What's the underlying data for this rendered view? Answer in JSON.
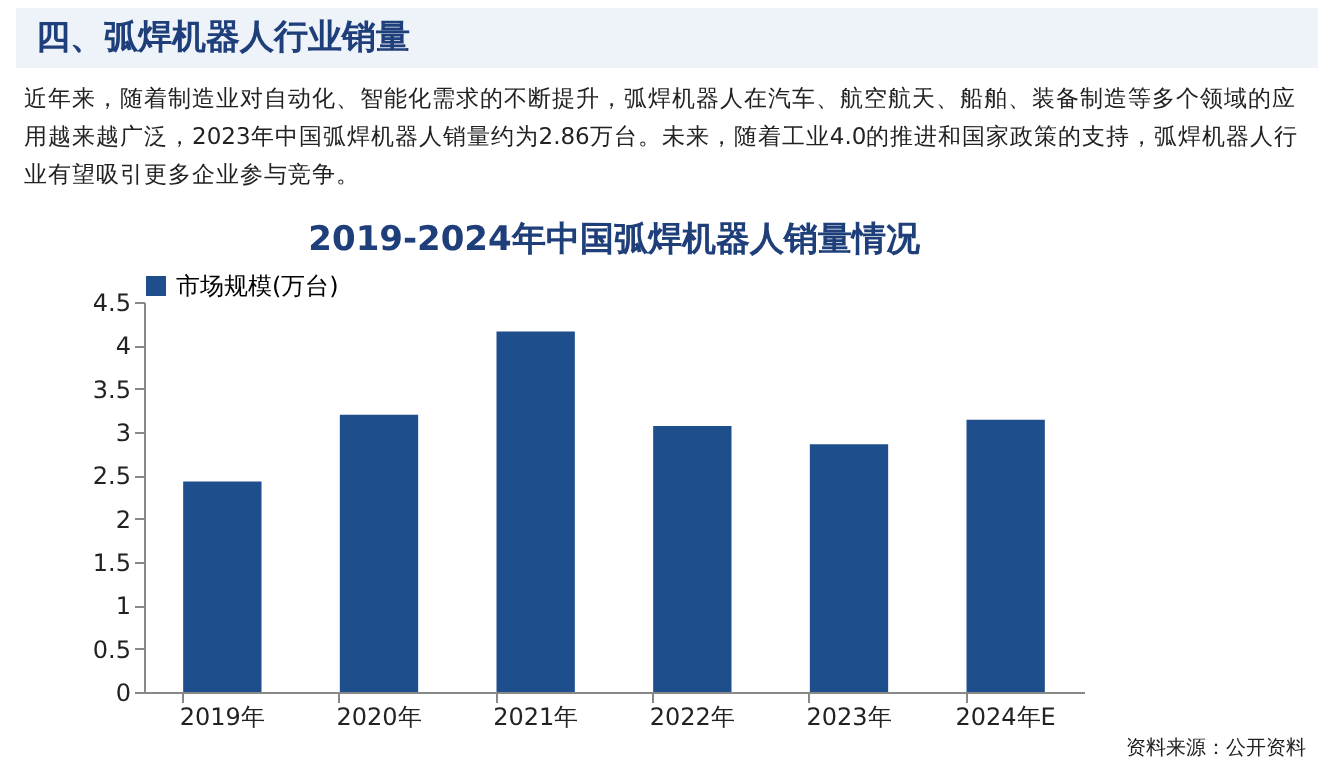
{
  "chart_data": {
    "type": "bar",
    "title": "2019-2024年中国弧焊机器人销量情况",
    "categories": [
      "2019年",
      "2020年",
      "2021年",
      "2022年",
      "2023年",
      "2024年E"
    ],
    "series": [
      {
        "name": "市场规模(万台)",
        "color": "#1f4e8c",
        "values": [
          2.43,
          3.2,
          4.16,
          3.07,
          2.86,
          3.14
        ]
      }
    ],
    "ylim": [
      0,
      4.5
    ],
    "yticks": [
      0,
      0.5,
      1,
      1.5,
      2,
      2.5,
      3,
      3.5,
      4,
      4.5
    ],
    "grid": false,
    "legend": "top",
    "annotations": [
      "四、弧焊机器人行业销量",
      "近年来，随着制造业对自动化、智能化需求的不断提升，弧焊机器人在汽车、航空航天、船舶、装备制造等多个领域的应用越来越广泛，2023年中国弧焊机器人销量约为2.86万台。未来，随着工业4.0的推进和国家政策的支持，弧焊机器人行业有望吸引更多企业参与竞争。",
      "资料来源：公开资料"
    ]
  }
}
